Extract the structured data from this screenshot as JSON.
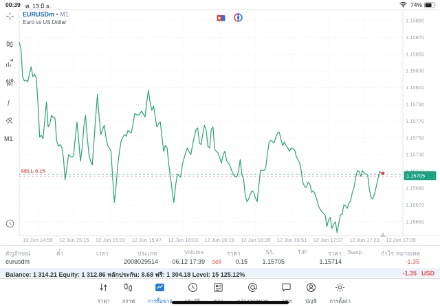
{
  "status_bar": {
    "time": "00:39",
    "date": "ศ. 13 มิ.ย.",
    "battery": "74%"
  },
  "chart_header": {
    "symbol": "EURUSDm",
    "separator": "•",
    "timeframe": "M1",
    "description": "Euro vs US Dollar"
  },
  "sidebar": {
    "timeframe": "M1",
    "tools": [
      "crosshair",
      "candlesticks",
      "indicators",
      "objects-sliders",
      "function",
      "rotate-person",
      "clock"
    ]
  },
  "chart_data": {
    "type": "line",
    "title": "EURUSDm M1 Euro vs US Dollar",
    "line_color": "#2aa077",
    "grid": true,
    "legend_position": "none",
    "y_ticks": [
      "1.15890",
      "1.15870",
      "1.15850",
      "1.15830",
      "1.15810",
      "1.15790",
      "1.15770",
      "1.15750",
      "1.15730",
      "1.15710",
      "1.15690",
      "1.15670",
      "1.15650"
    ],
    "ylim": [
      1.1565,
      1.1589
    ],
    "x_ticks": [
      "12 Jun 14:59",
      "12 Jun 15:15",
      "12 Jun 15:31",
      "12 Jun 15:47",
      "12 Jun 16:03",
      "12 Jun 16:19",
      "12 Jun 16:35",
      "12 Jun 16:51",
      "12 Jun 17:07",
      "12 Jun 17:23",
      "12 Jun 17:39"
    ],
    "sell_line": {
      "label": "SELL 0.15",
      "price": 1.15705,
      "color": "#e05252"
    },
    "current_price": {
      "label": "1.15705",
      "price": 1.15705,
      "tag_color": "#1ba383"
    },
    "values": [
      1.15864,
      1.15856,
      1.15823,
      1.15818,
      1.15819,
      1.15817,
      1.15826,
      1.15835,
      1.15823,
      1.15826,
      1.15822,
      1.15792,
      1.15751,
      1.15753,
      1.15749,
      1.15771,
      1.15793,
      1.15763,
      1.15767,
      1.15777,
      1.15774,
      1.15774,
      1.15747,
      1.1574,
      1.15742,
      1.15739,
      1.15726,
      1.157,
      1.15714,
      1.1573,
      1.15728,
      1.15727,
      1.15729,
      1.15751,
      1.15769,
      1.15747,
      1.15722,
      1.15738,
      1.15763,
      1.15777,
      1.15751,
      1.1573,
      1.15722,
      1.15718,
      1.15747,
      1.15775,
      1.15802,
      1.15775,
      1.15754,
      1.1576,
      1.15765,
      1.15751,
      1.15741,
      1.15738,
      1.15734,
      1.15701,
      1.15673,
      1.15693,
      1.15719,
      1.15734,
      1.15747,
      1.15751,
      1.15754,
      1.15752,
      1.15759,
      1.15757,
      1.15756,
      1.15767,
      1.15779,
      1.15778,
      1.15777,
      1.15779,
      1.15782,
      1.15778,
      1.15775,
      1.15792,
      1.15807,
      1.15793,
      1.15783,
      1.15788,
      1.15775,
      1.15763,
      1.15767,
      1.15769,
      1.15751,
      1.15734,
      1.15741,
      1.15738,
      1.15718,
      1.15703,
      1.15687,
      1.15673,
      1.15693,
      1.15707,
      1.15705,
      1.15703,
      1.15718,
      1.15726,
      1.15733,
      1.15738,
      1.15733,
      1.1573,
      1.15742,
      1.15751,
      1.1576,
      1.15762,
      1.15744,
      1.15742,
      1.15755,
      1.15765,
      1.15759,
      1.1574,
      1.15738,
      1.1576,
      1.15763,
      1.15736,
      1.15734,
      1.15732,
      1.15726,
      1.1572,
      1.1573,
      1.15734,
      1.15723,
      1.1572,
      1.15717,
      1.15711,
      1.15706,
      1.15704,
      1.15703,
      1.1571,
      1.15724,
      1.15706,
      1.15701,
      1.15681,
      1.15674,
      1.15677,
      1.15683,
      1.15687,
      1.15685,
      1.15678,
      1.15674,
      1.15693,
      1.15712,
      1.15711,
      1.15711,
      1.15714,
      1.1573,
      1.15745,
      1.15747,
      1.15746,
      1.15744,
      1.15751,
      1.15756,
      1.15757,
      1.15748,
      1.15741,
      1.15745,
      1.15741,
      1.15738,
      1.15734,
      1.15738,
      1.15737,
      1.15736,
      1.15728,
      1.15724,
      1.1572,
      1.1571,
      1.15696,
      1.15692,
      1.15691,
      1.15697,
      1.15695,
      1.15685,
      1.15687,
      1.15683,
      1.15677,
      1.15669,
      1.15665,
      1.15662,
      1.1566,
      1.15658,
      1.15644,
      1.15652,
      1.15655,
      1.15642,
      1.15647,
      1.1565,
      1.15637,
      1.15648,
      1.15658,
      1.15659,
      1.1567,
      1.15669,
      1.15666,
      1.15672,
      1.15675,
      1.15685,
      1.15691,
      1.15703,
      1.15711,
      1.1571,
      1.15704,
      1.15711,
      1.15708,
      1.15707,
      1.15706,
      1.15689,
      1.15679,
      1.15677,
      1.15683,
      1.15691,
      1.15701,
      1.1571,
      1.15708,
      1.15706
    ]
  },
  "positions_table": {
    "headers": [
      "สัญลักษณ์",
      "ตั๋ว",
      "เวลา",
      "ประเภท",
      "Volume",
      "ราคา",
      "S/L",
      "T/P",
      "ราคา",
      "Swap",
      "กำไร",
      "หมายเหตุ"
    ],
    "row": {
      "symbol": "eurusdm",
      "ticket": "2008029514",
      "time": "06.12 17:39",
      "type": "sell",
      "volume": "0.15",
      "price_open": "1.15705",
      "sl": "",
      "tp": "",
      "price_current": "1.15714",
      "swap": "",
      "profit": "-1.35",
      "comment": ""
    }
  },
  "account_bar": {
    "summary": "Balance: 1 314.21 Equity: 1 312.86 หลักประกัน: 8.68 ฟรี: 1 304.18 Level: 15 125.12%",
    "profit": "-1.35",
    "currency": "USD"
  },
  "nav": {
    "items": [
      {
        "label": "ราคา",
        "icon": "quotes-arrows"
      },
      {
        "label": "กราฟ",
        "icon": "chart-candles"
      },
      {
        "label": "การซื้อขาย",
        "icon": "trade-chart",
        "active": true
      },
      {
        "label": "ประวัติ",
        "icon": "history-clock"
      },
      {
        "label": "ข่าว",
        "icon": "news-doc"
      },
      {
        "label": "กล่องจดหมาย",
        "icon": "mailbox-at"
      },
      {
        "label": "แชท",
        "icon": "chat-bubble"
      },
      {
        "label": "บัญชี",
        "icon": "account-person"
      },
      {
        "label": "การตั้งค่า",
        "icon": "settings-gear"
      }
    ]
  },
  "colors": {
    "accent_teal": "#1ba383",
    "sell_red": "#e05252",
    "symbol_blue": "#1565c0",
    "nav_active": "#1f7ae0"
  }
}
